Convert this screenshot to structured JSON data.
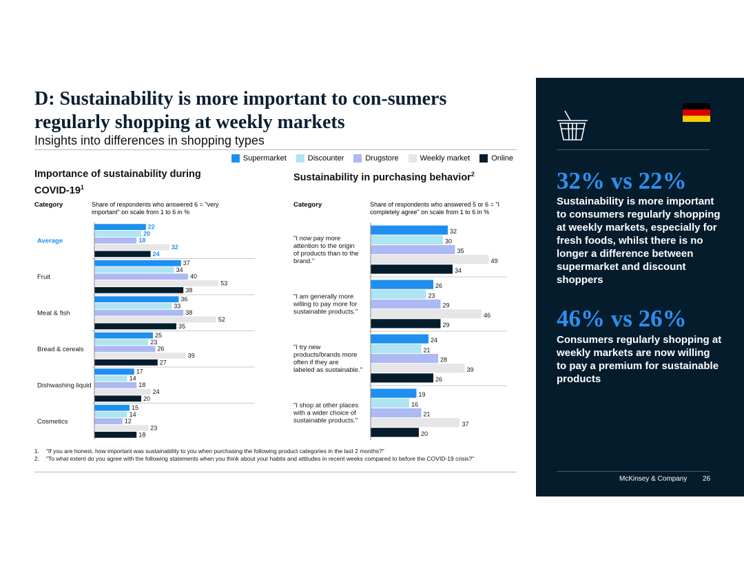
{
  "title": "D: Sustainability is more important to con-sumers regularly shopping at weekly markets",
  "subtitle": "Insights into differences in shopping types",
  "legend": [
    {
      "label": "Supermarket",
      "color": "#1f8fef"
    },
    {
      "label": "Discounter",
      "color": "#afe4f2"
    },
    {
      "label": "Drugstore",
      "color": "#adb9f2"
    },
    {
      "label": "Weekly market",
      "color": "#e6e6e8"
    },
    {
      "label": "Online",
      "color": "#051c2c"
    }
  ],
  "left_panel": {
    "title": "Importance of sustainability during COVID-19",
    "title_sup": "1",
    "category_header": "Category",
    "share_header": "Share of respondents who answered 6 = \"very important\" on scale from 1 to 6 in %"
  },
  "right_panel": {
    "title": "Sustainability in purchasing behavior",
    "title_sup": "2",
    "category_header": "Category",
    "share_header": "Share of respondents who answered 5 or 6 = \"I completely agree\" on scale from 1 to 6 in %"
  },
  "chart_data": [
    {
      "type": "bar",
      "orientation": "horizontal",
      "title": "Importance of sustainability during COVID-19",
      "categories": [
        "Average",
        "Fruit",
        "Meat & fish",
        "Bread & cereals",
        "Dishwashing liquid",
        "Cosmetics"
      ],
      "highlight_category": "Average",
      "series": [
        {
          "name": "Supermarket",
          "values": [
            22,
            37,
            36,
            25,
            17,
            15
          ]
        },
        {
          "name": "Discounter",
          "values": [
            20,
            34,
            33,
            23,
            14,
            14
          ]
        },
        {
          "name": "Drugstore",
          "values": [
            18,
            40,
            38,
            26,
            18,
            12
          ]
        },
        {
          "name": "Weekly market",
          "values": [
            32,
            53,
            52,
            39,
            24,
            23
          ]
        },
        {
          "name": "Online",
          "values": [
            24,
            38,
            35,
            27,
            20,
            18
          ]
        }
      ],
      "xlim": [
        0,
        60
      ]
    },
    {
      "type": "bar",
      "orientation": "horizontal",
      "title": "Sustainability in purchasing behavior",
      "categories": [
        "\"I now pay more attention to the origin of products than to the brand.\"",
        "\"I am generally more willing to pay more for sustainable products.\"",
        "\"I try new products/brands more often if they are labeled as sustainable.\"",
        "\"I shop at other places with a wider choice of sustainable products.\""
      ],
      "series": [
        {
          "name": "Supermarket",
          "values": [
            32,
            26,
            24,
            19
          ]
        },
        {
          "name": "Discounter",
          "values": [
            30,
            23,
            21,
            16
          ]
        },
        {
          "name": "Drugstore",
          "values": [
            35,
            29,
            28,
            21
          ]
        },
        {
          "name": "Weekly market",
          "values": [
            49,
            46,
            39,
            37
          ]
        },
        {
          "name": "Online",
          "values": [
            34,
            29,
            26,
            20
          ]
        }
      ],
      "xlim": [
        0,
        60
      ]
    }
  ],
  "footnotes": [
    {
      "num": "1.",
      "text": "\"If you are honest, how important was sustainability to you when purchasing the following product categories in the last 2 months?\""
    },
    {
      "num": "2.",
      "text": "\"To what extent do you agree with the following statements when you think about your habits and attitudes in recent weeks compared to before the COVID-19 crisis?\""
    }
  ],
  "sidebar": {
    "stat1": "32% vs 22%",
    "text1": "Sustainability is more important to consumers regularly shopping at weekly markets, especially for fresh foods, whilst there is no longer a difference between supermarket and discount shoppers",
    "stat2": "46% vs 26%",
    "text2": "Consumers regularly shopping at weekly markets are now willing to pay a premium for sustainable products",
    "company": "McKinsey & Company",
    "page": "26",
    "accent": "#2f8ff0",
    "background": "#051c2c",
    "flag_colors": [
      "#000000",
      "#dd0000",
      "#ffce00"
    ]
  }
}
